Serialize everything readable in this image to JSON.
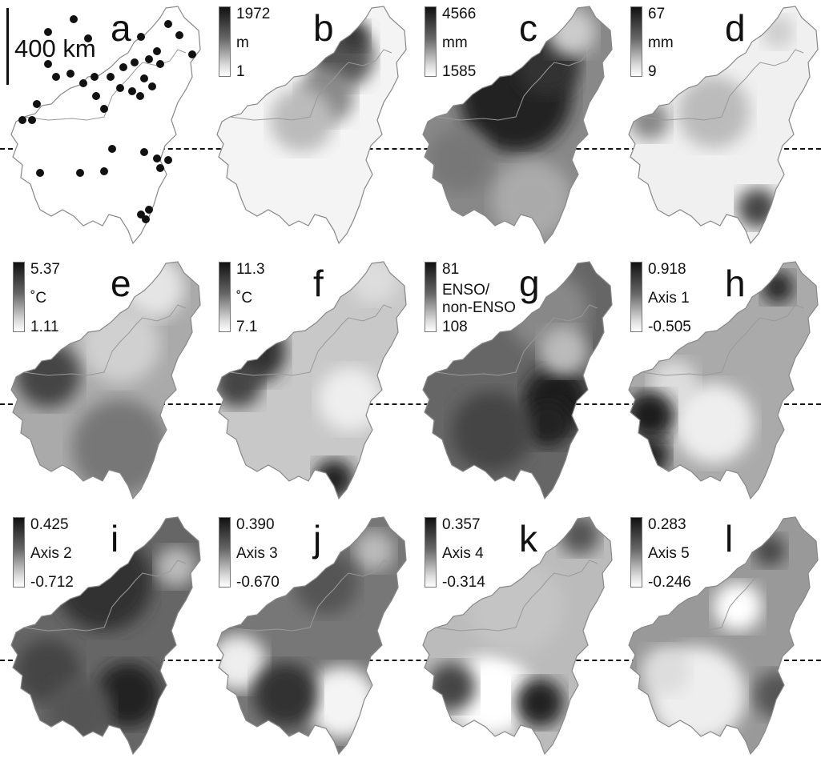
{
  "scale_label": "400 km",
  "panels": [
    {
      "letter": "a",
      "legend": null
    },
    {
      "letter": "b",
      "legend": {
        "top": "1972",
        "mid": "m",
        "bot": "1"
      }
    },
    {
      "letter": "c",
      "legend": {
        "top": "4566",
        "mid": "mm",
        "bot": "1585"
      }
    },
    {
      "letter": "d",
      "legend": {
        "top": "67",
        "mid": "mm",
        "bot": "9"
      }
    },
    {
      "letter": "e",
      "legend": {
        "top": "5.37",
        "mid": "˚C",
        "bot": "1.11"
      }
    },
    {
      "letter": "f",
      "legend": {
        "top": "11.3",
        "mid": "˚C",
        "bot": "7.1"
      }
    },
    {
      "letter": "g",
      "legend": {
        "top": "81",
        "mid": "ENSO/",
        "mid2": "non-ENSO",
        "bot": "108"
      }
    },
    {
      "letter": "h",
      "legend": {
        "top": "0.918",
        "mid": "Axis 1",
        "bot": "-0.505"
      }
    },
    {
      "letter": "i",
      "legend": {
        "top": "0.425",
        "mid": "Axis 2",
        "bot": "-0.712"
      }
    },
    {
      "letter": "j",
      "legend": {
        "top": "0.390",
        "mid": "Axis 3",
        "bot": "-0.670"
      }
    },
    {
      "letter": "k",
      "legend": {
        "top": "0.357",
        "mid": "Axis 4",
        "bot": "-0.314"
      }
    },
    {
      "letter": "l",
      "legend": {
        "top": "0.283",
        "mid": "Axis 5",
        "bot": "-0.246"
      }
    }
  ],
  "colors": {
    "ink": "#111111",
    "outline": "#888888",
    "land_light": "#f4f4f4",
    "dark_fill": "#222222"
  }
}
